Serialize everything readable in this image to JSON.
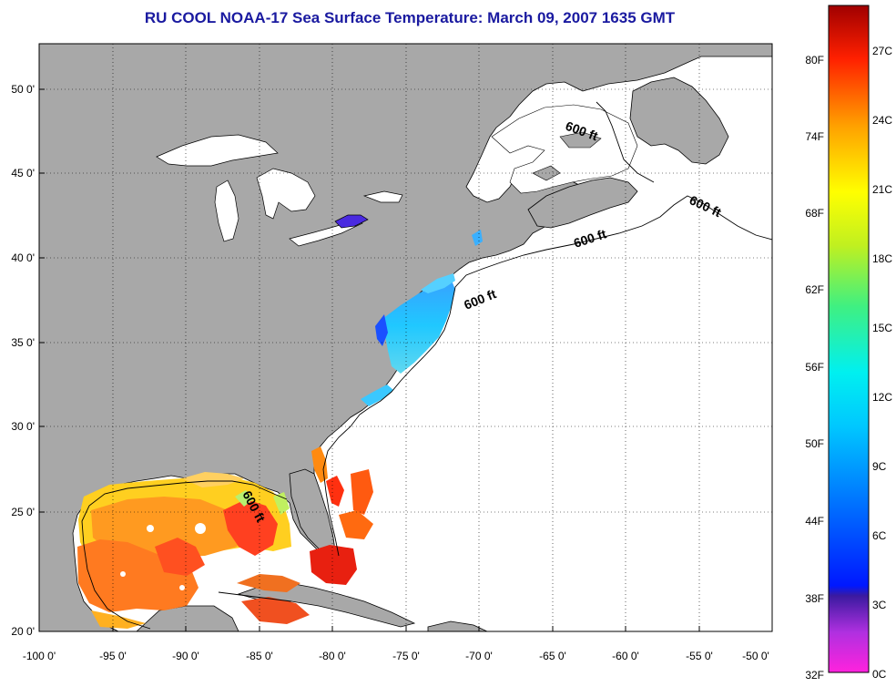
{
  "title": "RU COOL  NOAA-17  Sea Surface Temperature:  March 09, 2007 1635 GMT",
  "axes": {
    "lon_ticks": [
      "-100 0'",
      "-95 0'",
      "-90 0'",
      "-85 0'",
      "-80 0'",
      "-75 0'",
      "-70 0'",
      "-65 0'",
      "-60 0'",
      "-55 0'",
      "-50 0'"
    ],
    "lat_ticks": [
      "50 0'",
      "45 0'",
      "40 0'",
      "35 0'",
      "30 0'",
      "25 0'",
      "20 0'"
    ]
  },
  "contour_labels": [
    "600 ft",
    "600 ft",
    "600 ft",
    "600 ft",
    "600 ft"
  ],
  "colorbar": {
    "fahrenheit": [
      "80F",
      "74F",
      "68F",
      "62F",
      "56F",
      "50F",
      "44F",
      "38F",
      "32F"
    ],
    "celsius": [
      "27C",
      "24C",
      "21C",
      "18C",
      "15C",
      "12C",
      "9C",
      "6C",
      "3C",
      "0C"
    ]
  },
  "colors": {
    "land": "#a8a8a8",
    "no_data": "#ffffff",
    "title": "#1a1aa0"
  }
}
